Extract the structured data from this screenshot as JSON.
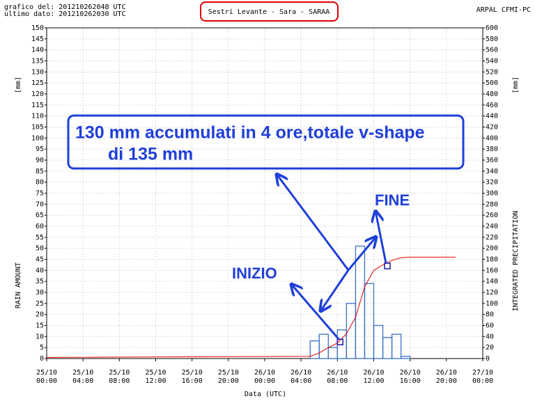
{
  "header": {
    "created": "grafico del: 201210262048 UTC",
    "last": "ultimo dato: 201210262030 UTC",
    "source": "ARPAL CFMI-PC"
  },
  "chart_data": {
    "type": "bar",
    "title": "Sestri Levante - Sara - SARAA",
    "xlabel": "Data (UTC)",
    "ylabel": "RAIN AMOUNT",
    "yunit": "[mm]",
    "y2label": "INTEGRATED PRECIPITATION",
    "y2unit": "[mm]",
    "xlim": [
      0,
      48
    ],
    "xticks": [
      {
        "value": 0,
        "label": [
          "25/10",
          "00:00"
        ]
      },
      {
        "value": 4,
        "label": [
          "25/10",
          "04:00"
        ]
      },
      {
        "value": 8,
        "label": [
          "25/10",
          "08:00"
        ]
      },
      {
        "value": 12,
        "label": [
          "25/10",
          "12:00"
        ]
      },
      {
        "value": 16,
        "label": [
          "25/10",
          "16:00"
        ]
      },
      {
        "value": 20,
        "label": [
          "25/10",
          "20:00"
        ]
      },
      {
        "value": 24,
        "label": [
          "26/10",
          "00:00"
        ]
      },
      {
        "value": 28,
        "label": [
          "26/10",
          "04:00"
        ]
      },
      {
        "value": 32,
        "label": [
          "26/10",
          "08:00"
        ]
      },
      {
        "value": 36,
        "label": [
          "26/10",
          "12:00"
        ]
      },
      {
        "value": 40,
        "label": [
          "26/10",
          "16:00"
        ]
      },
      {
        "value": 44,
        "label": [
          "26/10",
          "20:00"
        ]
      },
      {
        "value": 48,
        "label": [
          "27/10",
          "00:00"
        ]
      }
    ],
    "ylim": [
      0,
      150
    ],
    "yticks": [
      0,
      5,
      10,
      15,
      20,
      25,
      30,
      35,
      40,
      45,
      50,
      55,
      60,
      65,
      70,
      75,
      80,
      85,
      90,
      95,
      100,
      105,
      110,
      115,
      120,
      125,
      130,
      135,
      140,
      145,
      150
    ],
    "y2lim": [
      0,
      600
    ],
    "y2ticks": [
      0,
      20,
      40,
      60,
      80,
      100,
      120,
      140,
      160,
      180,
      200,
      220,
      240,
      260,
      280,
      300,
      320,
      340,
      360,
      380,
      400,
      420,
      440,
      460,
      480,
      500,
      520,
      540,
      560,
      580,
      600
    ],
    "grid": true,
    "series": [
      {
        "type": "bar",
        "color": "#3a6fc8",
        "bins": [
          29,
          30,
          31,
          32,
          33,
          34,
          35,
          36,
          37,
          38,
          39,
          40
        ],
        "values": [
          8,
          11,
          5,
          13,
          25,
          51,
          34,
          15,
          9.5,
          11,
          1
        ]
      },
      {
        "type": "line",
        "axis": "y2",
        "color": "#e00000",
        "x": [
          0,
          29,
          30,
          31,
          32,
          33,
          34,
          35,
          36,
          37,
          38,
          39,
          40,
          45
        ],
        "values": [
          2,
          4,
          10,
          20,
          28,
          45,
          75,
          130,
          160,
          170,
          178,
          183,
          184,
          184
        ]
      }
    ],
    "markers": {
      "color": "#1a1aa0",
      "x": [
        32.3,
        37.5
      ],
      "y": [
        7.5,
        42
      ]
    },
    "annotations": [
      "130 mm accumulati in 4 ore,totale v-shape",
      "di 135 mm",
      "INIZIO",
      "FINE"
    ]
  }
}
